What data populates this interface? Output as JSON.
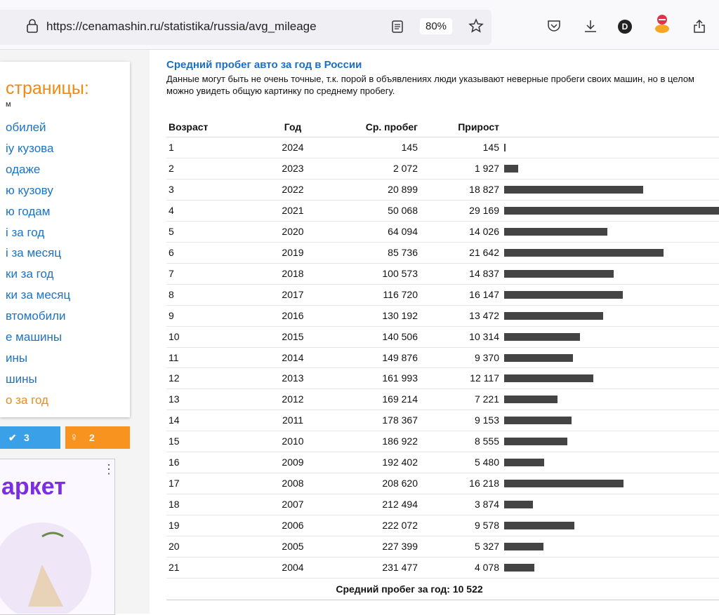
{
  "browser": {
    "url": "https://cenamashin.ru/statistika/russia/avg_mileage",
    "zoom": "80%",
    "avatar": "D"
  },
  "sidebar": {
    "title": "страницы:",
    "items": [
      "м",
      "обилей",
      "іу кузова",
      "одаже",
      "ю кузову",
      "ю годам",
      "і за год",
      "і за месяц",
      "ки за год",
      "ки за месяц",
      "втомобили",
      "е машины",
      "ины",
      "шины",
      "о за год"
    ],
    "share": [
      "3",
      "2"
    ],
    "ad": "аркет"
  },
  "header": {
    "title": "Средний пробег авто за год в России",
    "description": "Данные могут быть не очень точные, т.к. порой в объявлениях люди указывают неверные пробеги своих машин, но в целом можно увидеть общую картинку по среднему пробегу."
  },
  "table": {
    "columns": [
      "Возраст",
      "Год",
      "Ср. пробег",
      "Прирост"
    ],
    "rows": [
      {
        "age": 1,
        "year": 2024,
        "mileage": "145",
        "increase": {
          "value": 145,
          "label": "145"
        }
      },
      {
        "age": 2,
        "year": 2023,
        "mileage": "2 072",
        "increase": {
          "value": 1927,
          "label": "1 927"
        }
      },
      {
        "age": 3,
        "year": 2022,
        "mileage": "20 899",
        "increase": {
          "value": 18827,
          "label": "18 827"
        }
      },
      {
        "age": 4,
        "year": 2021,
        "mileage": "50 068",
        "increase": {
          "value": 29169,
          "label": "29 169"
        }
      },
      {
        "age": 5,
        "year": 2020,
        "mileage": "64 094",
        "increase": {
          "value": 14026,
          "label": "14 026"
        }
      },
      {
        "age": 6,
        "year": 2019,
        "mileage": "85 736",
        "increase": {
          "value": 21642,
          "label": "21 642"
        }
      },
      {
        "age": 7,
        "year": 2018,
        "mileage": "100 573",
        "increase": {
          "value": 14837,
          "label": "14 837"
        }
      },
      {
        "age": 8,
        "year": 2017,
        "mileage": "116 720",
        "increase": {
          "value": 16147,
          "label": "16 147"
        }
      },
      {
        "age": 9,
        "year": 2016,
        "mileage": "130 192",
        "increase": {
          "value": 13472,
          "label": "13 472"
        }
      },
      {
        "age": 10,
        "year": 2015,
        "mileage": "140 506",
        "increase": {
          "value": 10314,
          "label": "10 314"
        }
      },
      {
        "age": 11,
        "year": 2014,
        "mileage": "149 876",
        "increase": {
          "value": 9370,
          "label": "9 370"
        }
      },
      {
        "age": 12,
        "year": 2013,
        "mileage": "161 993",
        "increase": {
          "value": 12117,
          "label": "12 117"
        }
      },
      {
        "age": 13,
        "year": 2012,
        "mileage": "169 214",
        "increase": {
          "value": 7221,
          "label": "7 221"
        }
      },
      {
        "age": 14,
        "year": 2011,
        "mileage": "178 367",
        "increase": {
          "value": 9153,
          "label": "9 153"
        }
      },
      {
        "age": 15,
        "year": 2010,
        "mileage": "186 922",
        "increase": {
          "value": 8555,
          "label": "8 555"
        }
      },
      {
        "age": 16,
        "year": 2009,
        "mileage": "192 402",
        "increase": {
          "value": 5480,
          "label": "5 480"
        }
      },
      {
        "age": 17,
        "year": 2008,
        "mileage": "208 620",
        "increase": {
          "value": 16218,
          "label": "16 218"
        }
      },
      {
        "age": 18,
        "year": 2007,
        "mileage": "212 494",
        "increase": {
          "value": 3874,
          "label": "3 874"
        }
      },
      {
        "age": 19,
        "year": 2006,
        "mileage": "222 072",
        "increase": {
          "value": 9578,
          "label": "9 578"
        }
      },
      {
        "age": 20,
        "year": 2005,
        "mileage": "227 399",
        "increase": {
          "value": 5327,
          "label": "5 327"
        }
      },
      {
        "age": 21,
        "year": 2004,
        "mileage": "231 477",
        "increase": {
          "value": 4078,
          "label": "4 078"
        }
      }
    ],
    "footer": "Средний пробег за год: 10 522"
  }
}
